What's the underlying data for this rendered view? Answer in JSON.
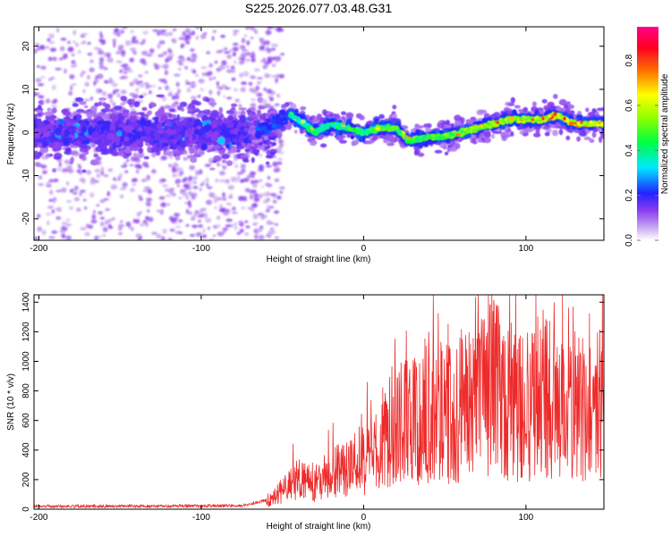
{
  "figure_title": "S225.2026.077.03.48.G31",
  "chart_data": [
    {
      "type": "heatmap",
      "title": "",
      "xlabel": "Height of straight line (km)",
      "ylabel": "Frequency (Hz)",
      "xlim": [
        -203,
        148
      ],
      "ylim": [
        -25,
        24.5
      ],
      "xticks": [
        -200,
        -100,
        0,
        100
      ],
      "yticks": [
        -20,
        -10,
        0,
        10,
        20
      ],
      "grid": false,
      "colormap": "rainbow (white-purple-blue-cyan-green-yellow-red-pink)",
      "colorbar": {
        "label": "Normalized spectral amplitude",
        "range": [
          0,
          0.95
        ],
        "ticks": [
          0.0,
          0.2,
          0.4,
          0.6,
          0.8
        ]
      },
      "ridge_center_frequency": {
        "x": [
          -200,
          -150,
          -100,
          -75,
          -60,
          -50,
          -45,
          -40,
          -30,
          -20,
          -10,
          0,
          10,
          20,
          28,
          40,
          50,
          60,
          70,
          80,
          90,
          100,
          110,
          120,
          130,
          140,
          148
        ],
        "y": [
          0,
          0,
          0,
          0,
          1,
          3,
          4,
          3,
          0,
          2,
          1,
          0,
          1,
          1,
          -2,
          -1,
          -1,
          0,
          1,
          2,
          3,
          3,
          3,
          4,
          2,
          2,
          2
        ]
      },
      "signal_onset_x": -60,
      "noise_region_x": [
        -203,
        -60
      ]
    },
    {
      "type": "line",
      "title": "",
      "xlabel": "Height of straight line (km)",
      "ylabel": "SNR (10 * v/v)",
      "xlim": [
        -203,
        148
      ],
      "ylim": [
        0,
        1450
      ],
      "xticks": [
        -200,
        -100,
        0,
        100
      ],
      "yticks": [
        0,
        200,
        400,
        600,
        800,
        1000,
        1200,
        1400
      ],
      "grid": false,
      "color": "#ee2a2a",
      "series": [
        {
          "x": [
            -200,
            -150,
            -100,
            -75,
            -60,
            -50,
            -40,
            -30,
            -20,
            -10,
            0,
            10,
            18,
            30,
            40,
            50,
            60,
            70,
            80,
            90,
            100,
            110,
            120,
            130,
            140,
            148
          ],
          "y": [
            20,
            20,
            22,
            25,
            60,
            120,
            200,
            180,
            230,
            290,
            340,
            380,
            570,
            600,
            700,
            640,
            700,
            720,
            820,
            760,
            680,
            780,
            680,
            700,
            650,
            720
          ]
        }
      ]
    }
  ]
}
